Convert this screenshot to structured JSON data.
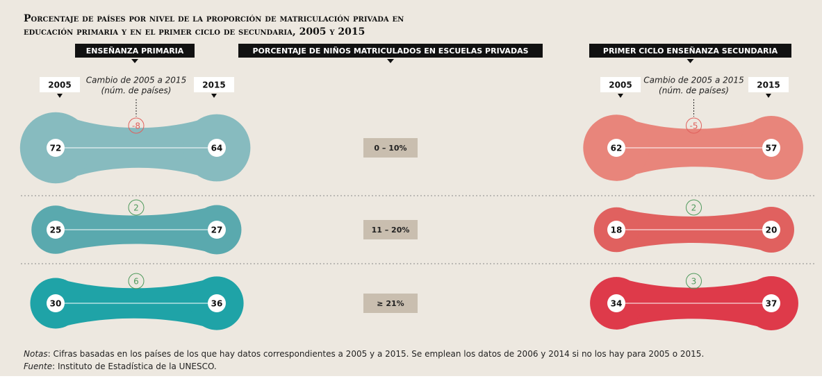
{
  "title": [
    "Porcentaje de países por nivel de la proporción de matriculación privada en",
    "educación primaria y en el primer ciclo de secundaria, 2005 y 2015"
  ],
  "center_header": "Porcentaje de niños matriculados en escuelas privadas",
  "categories": [
    "0 – 10%",
    "11 – 20%",
    "≥ 21%"
  ],
  "positive_color": "#4f9a5c",
  "negative_color": "#e0605c",
  "panels": [
    {
      "header": "Enseñanza primaria",
      "year_start": "2005",
      "year_end": "2015",
      "change_label": "Cambio de 2005 a 2015",
      "change_unit": "(núm. de países)",
      "rows": [
        {
          "start": 72,
          "end": 64,
          "change": -8,
          "color": "#87bbbf"
        },
        {
          "start": 25,
          "end": 27,
          "change": 2,
          "color": "#5aa9ae"
        },
        {
          "start": 30,
          "end": 36,
          "change": 6,
          "color": "#1fa3a7"
        }
      ]
    },
    {
      "header": "Primer ciclo enseñanza secundaria",
      "year_start": "2005",
      "year_end": "2015",
      "change_label": "Cambio de 2005 a 2015",
      "change_unit": "(núm. de países)",
      "rows": [
        {
          "start": 62,
          "end": 57,
          "change": -5,
          "color": "#e8857b"
        },
        {
          "start": 18,
          "end": 20,
          "change": 2,
          "color": "#e0615f"
        },
        {
          "start": 34,
          "end": 37,
          "change": 3,
          "color": "#de3a4a"
        }
      ]
    }
  ],
  "notes_label": "Notas",
  "notes": ": Cifras basadas en los países de los que hay datos correspondientes a 2005 y a 2015. Se emplean los datos de 2006 y 2014 si no los hay para 2005 o 2015.",
  "source_label": "Fuente",
  "source": ": Instituto de Estadística de la UNESCO."
}
